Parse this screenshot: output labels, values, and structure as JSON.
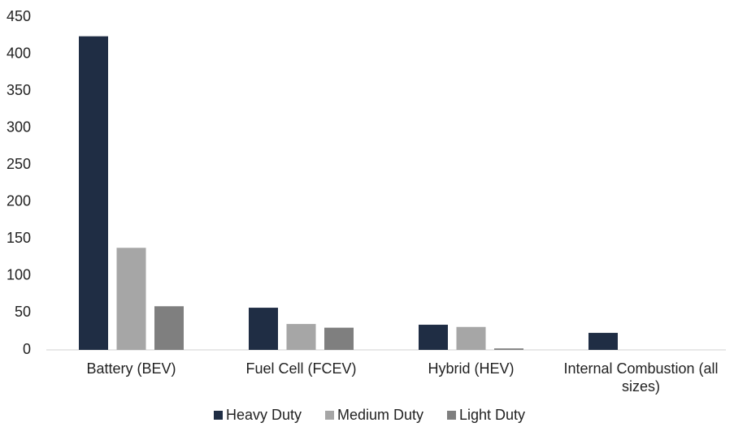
{
  "chart_data": {
    "type": "bar",
    "categories": [
      "Battery (BEV)",
      "Fuel Cell (FCEV)",
      "Hybrid (HEV)",
      "Internal Combustion (all sizes)"
    ],
    "series": [
      {
        "name": "Heavy Duty",
        "color": "#1f2d44",
        "values": [
          424,
          57,
          34,
          23
        ]
      },
      {
        "name": "Medium Duty",
        "color": "#a6a6a6",
        "values": [
          138,
          35,
          31,
          0
        ]
      },
      {
        "name": "Light Duty",
        "color": "#7f7f7f",
        "values": [
          59,
          30,
          2,
          0
        ]
      }
    ],
    "ylim": [
      0,
      450
    ],
    "yticks": [
      0,
      50,
      100,
      150,
      200,
      250,
      300,
      350,
      400,
      450
    ],
    "grid": false,
    "legend": "bottom"
  }
}
